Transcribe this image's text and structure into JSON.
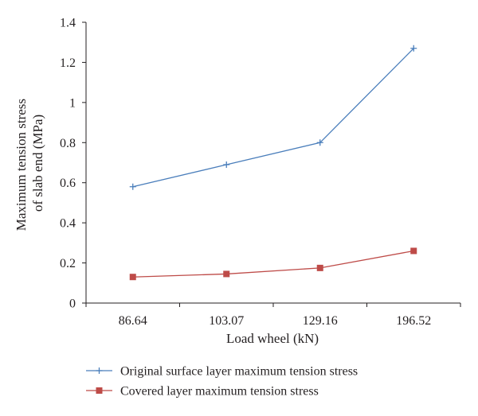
{
  "chart_data": {
    "type": "line",
    "categories": [
      "86.64",
      "103.07",
      "129.16",
      "196.52"
    ],
    "series": [
      {
        "name": "Original surface layer maximum tension stress",
        "values": [
          0.58,
          0.69,
          0.8,
          1.27
        ],
        "color": "#4a7ebb",
        "marker": "plus"
      },
      {
        "name": "Covered layer maximum tension stress",
        "values": [
          0.13,
          0.145,
          0.175,
          0.26
        ],
        "color": "#be4b48",
        "marker": "square"
      }
    ],
    "ylim": [
      0,
      1.4
    ],
    "yticks": [
      "0",
      "0.2",
      "0.4",
      "0.6",
      "0.8",
      "1",
      "1.2",
      "1.4"
    ],
    "xlabel": "Load wheel (kN)",
    "ylabel": [
      "Maximum tension stress",
      "of slab end (MPa)"
    ],
    "grid": false,
    "legend": "bottom"
  }
}
